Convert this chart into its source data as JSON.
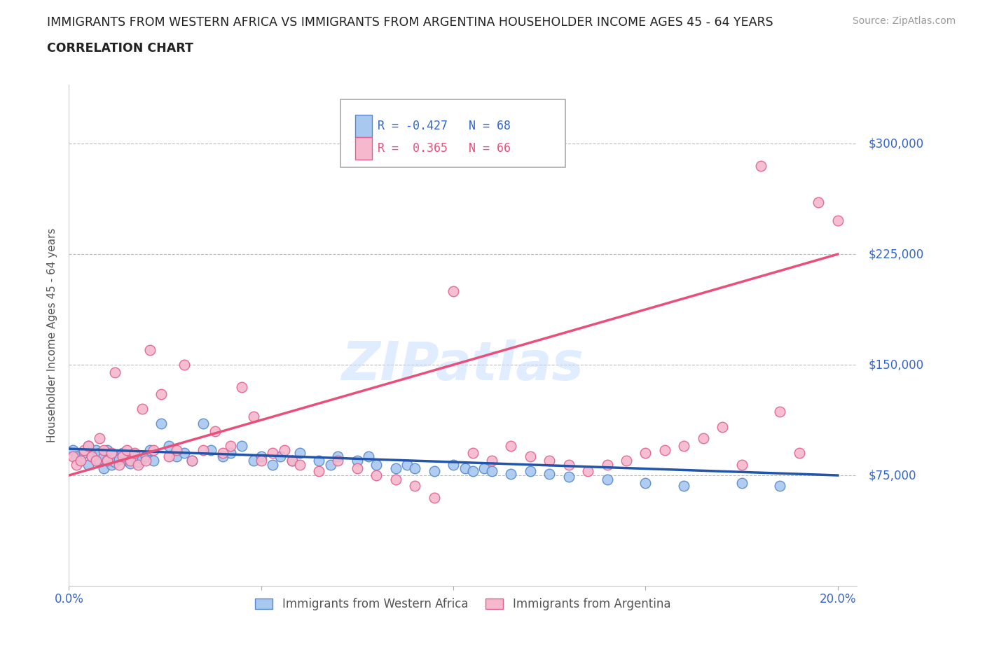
{
  "title_line1": "IMMIGRANTS FROM WESTERN AFRICA VS IMMIGRANTS FROM ARGENTINA HOUSEHOLDER INCOME AGES 45 - 64 YEARS",
  "title_line2": "CORRELATION CHART",
  "source_text": "Source: ZipAtlas.com",
  "ylabel": "Householder Income Ages 45 - 64 years",
  "xlim": [
    0.0,
    0.205
  ],
  "ylim": [
    0,
    340000
  ],
  "ytick_positions": [
    75000,
    150000,
    225000,
    300000
  ],
  "ytick_labels": [
    "$75,000",
    "$150,000",
    "$225,000",
    "$300,000"
  ],
  "watermark": "ZIPatlas",
  "legend_label1": "Immigrants from Western Africa",
  "legend_label2": "Immigrants from Argentina",
  "r1": -0.427,
  "n1": 68,
  "r2": 0.365,
  "n2": 66,
  "color_blue": "#A8C8F0",
  "color_pink": "#F5B8CC",
  "color_blue_edge": "#5588CC",
  "color_pink_edge": "#E06090",
  "color_blue_line": "#2255AA",
  "color_pink_line": "#E8507A",
  "color_blue_text": "#3366CC",
  "background_color": "#FFFFFF",
  "blue_trend_x0": 0.0,
  "blue_trend_y0": 93000,
  "blue_trend_x1": 0.2,
  "blue_trend_y1": 75000,
  "pink_trend_x0": 0.0,
  "pink_trend_y0": 75000,
  "pink_trend_x1": 0.2,
  "pink_trend_y1": 225000,
  "blue_x": [
    0.001,
    0.002,
    0.003,
    0.004,
    0.005,
    0.005,
    0.006,
    0.007,
    0.007,
    0.008,
    0.008,
    0.009,
    0.009,
    0.01,
    0.01,
    0.011,
    0.012,
    0.012,
    0.013,
    0.014,
    0.015,
    0.016,
    0.017,
    0.018,
    0.019,
    0.02,
    0.021,
    0.022,
    0.024,
    0.026,
    0.028,
    0.03,
    0.032,
    0.035,
    0.037,
    0.04,
    0.042,
    0.045,
    0.048,
    0.05,
    0.053,
    0.055,
    0.058,
    0.06,
    0.065,
    0.068,
    0.07,
    0.075,
    0.078,
    0.08,
    0.085,
    0.088,
    0.09,
    0.095,
    0.1,
    0.103,
    0.105,
    0.108,
    0.11,
    0.115,
    0.12,
    0.125,
    0.13,
    0.14,
    0.15,
    0.16,
    0.175,
    0.185
  ],
  "blue_y": [
    92000,
    88000,
    85000,
    90000,
    95000,
    82000,
    88000,
    86000,
    92000,
    85000,
    90000,
    80000,
    88000,
    92000,
    85000,
    82000,
    88000,
    84000,
    86000,
    90000,
    85000,
    83000,
    88000,
    84000,
    86000,
    88000,
    92000,
    85000,
    110000,
    95000,
    88000,
    90000,
    85000,
    110000,
    92000,
    88000,
    90000,
    95000,
    85000,
    88000,
    82000,
    88000,
    85000,
    90000,
    85000,
    82000,
    88000,
    85000,
    88000,
    82000,
    80000,
    82000,
    80000,
    78000,
    82000,
    80000,
    78000,
    80000,
    78000,
    76000,
    78000,
    76000,
    74000,
    72000,
    70000,
    68000,
    70000,
    68000
  ],
  "pink_x": [
    0.001,
    0.002,
    0.003,
    0.004,
    0.005,
    0.006,
    0.007,
    0.008,
    0.009,
    0.01,
    0.011,
    0.012,
    0.013,
    0.014,
    0.015,
    0.016,
    0.017,
    0.018,
    0.019,
    0.02,
    0.021,
    0.022,
    0.024,
    0.026,
    0.028,
    0.03,
    0.032,
    0.035,
    0.038,
    0.04,
    0.042,
    0.045,
    0.048,
    0.05,
    0.053,
    0.056,
    0.058,
    0.06,
    0.065,
    0.07,
    0.075,
    0.08,
    0.085,
    0.09,
    0.095,
    0.1,
    0.105,
    0.11,
    0.115,
    0.12,
    0.125,
    0.13,
    0.135,
    0.14,
    0.145,
    0.15,
    0.155,
    0.16,
    0.165,
    0.17,
    0.175,
    0.18,
    0.185,
    0.19,
    0.195,
    0.2
  ],
  "pink_y": [
    88000,
    82000,
    85000,
    92000,
    95000,
    88000,
    85000,
    100000,
    92000,
    85000,
    90000,
    145000,
    82000,
    88000,
    92000,
    85000,
    90000,
    82000,
    120000,
    85000,
    160000,
    92000,
    130000,
    88000,
    92000,
    150000,
    85000,
    92000,
    105000,
    90000,
    95000,
    135000,
    115000,
    85000,
    90000,
    92000,
    85000,
    82000,
    78000,
    85000,
    80000,
    75000,
    72000,
    68000,
    60000,
    200000,
    90000,
    85000,
    95000,
    88000,
    85000,
    82000,
    78000,
    82000,
    85000,
    90000,
    92000,
    95000,
    100000,
    108000,
    82000,
    285000,
    118000,
    90000,
    260000,
    248000
  ]
}
